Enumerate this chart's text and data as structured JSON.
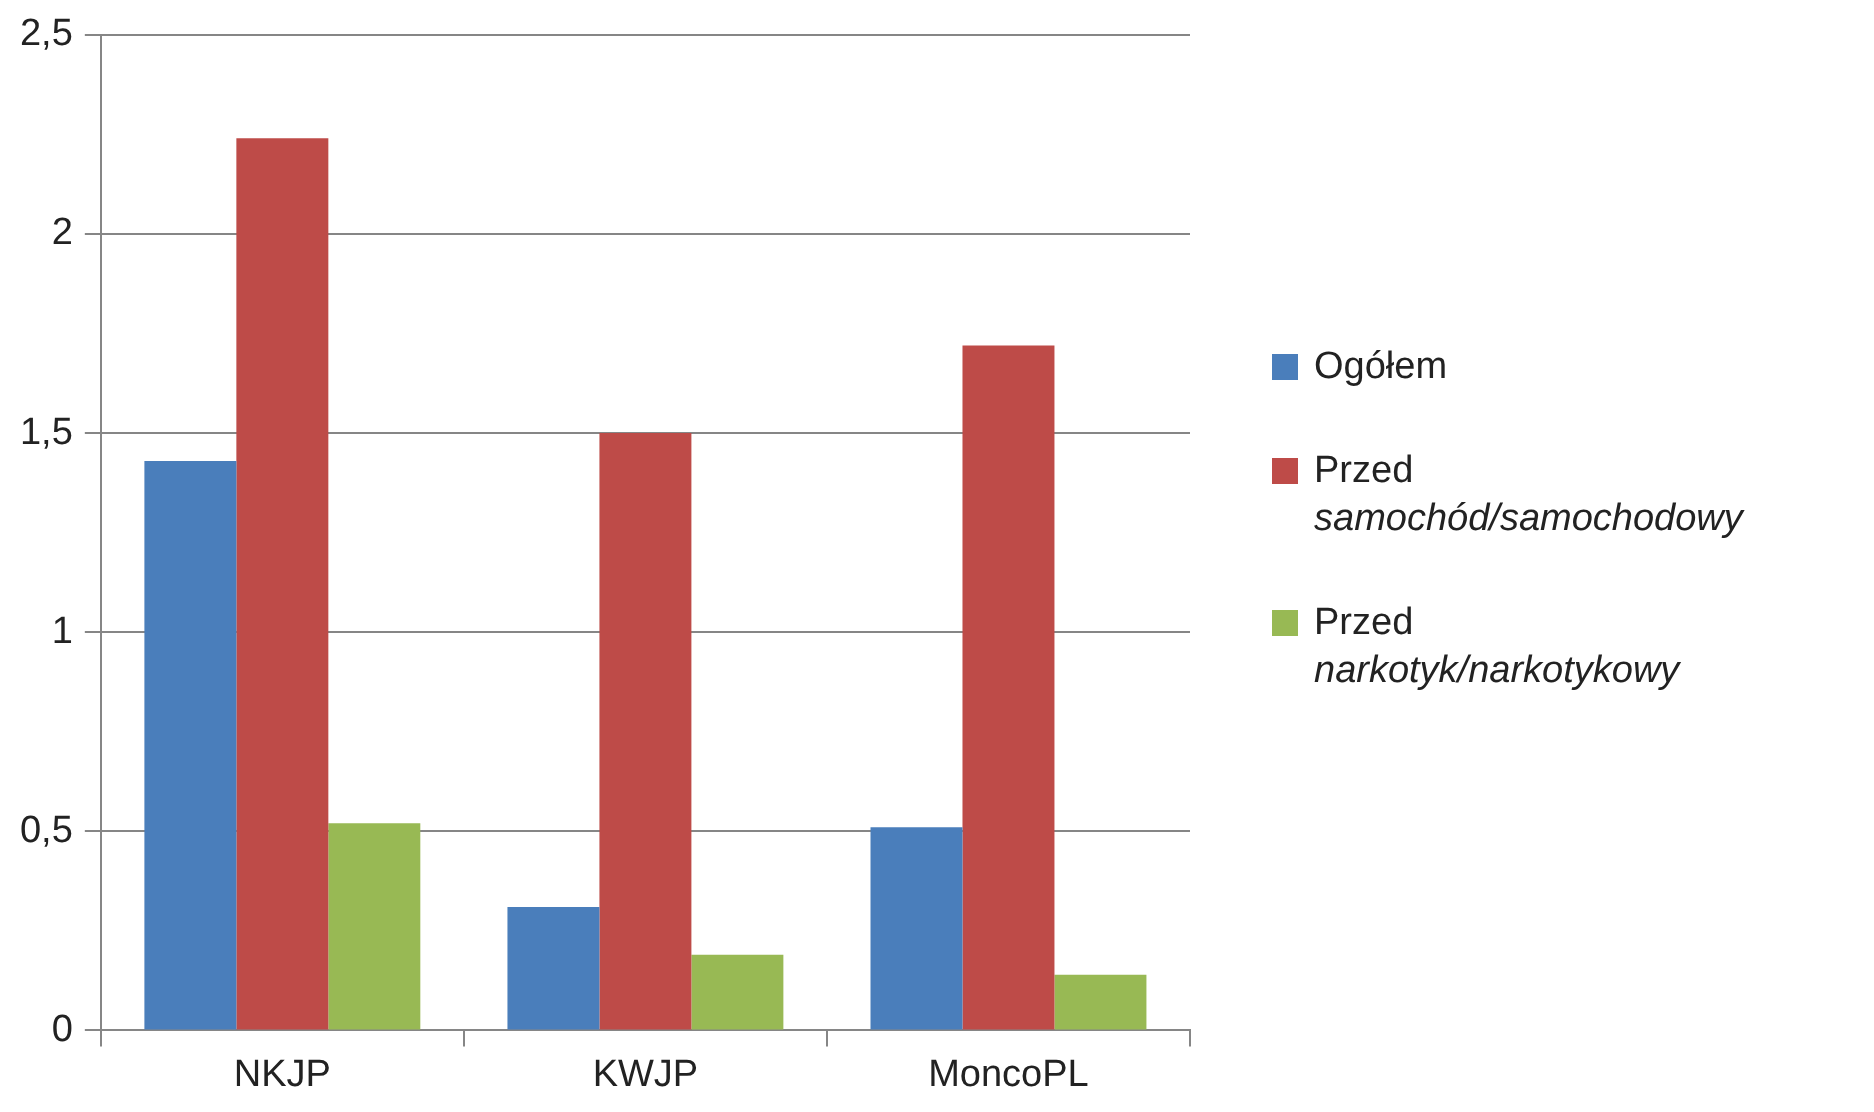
{
  "chart_data": {
    "type": "bar",
    "categories": [
      "NKJP",
      "KWJP",
      "MoncoPL"
    ],
    "series": [
      {
        "name": "Ogółem",
        "color": "#4a7ebb",
        "values": [
          1.43,
          0.31,
          0.51
        ]
      },
      {
        "name": "Przed samochód/samochodowy",
        "color": "#be4b48",
        "values": [
          2.24,
          1.5,
          1.72
        ]
      },
      {
        "name": "Przed narkotyk/narkotykowy",
        "color": "#98b954",
        "values": [
          0.52,
          0.19,
          0.14
        ]
      }
    ],
    "ylim": [
      0,
      2.5
    ],
    "yticks": [
      0,
      {
        "value": 0.5,
        "label": "0,5"
      },
      1,
      {
        "value": 1.5,
        "label": "1,5"
      },
      2,
      {
        "value": 2.5,
        "label": "2,5"
      }
    ],
    "grid": "y",
    "legend": "right"
  }
}
